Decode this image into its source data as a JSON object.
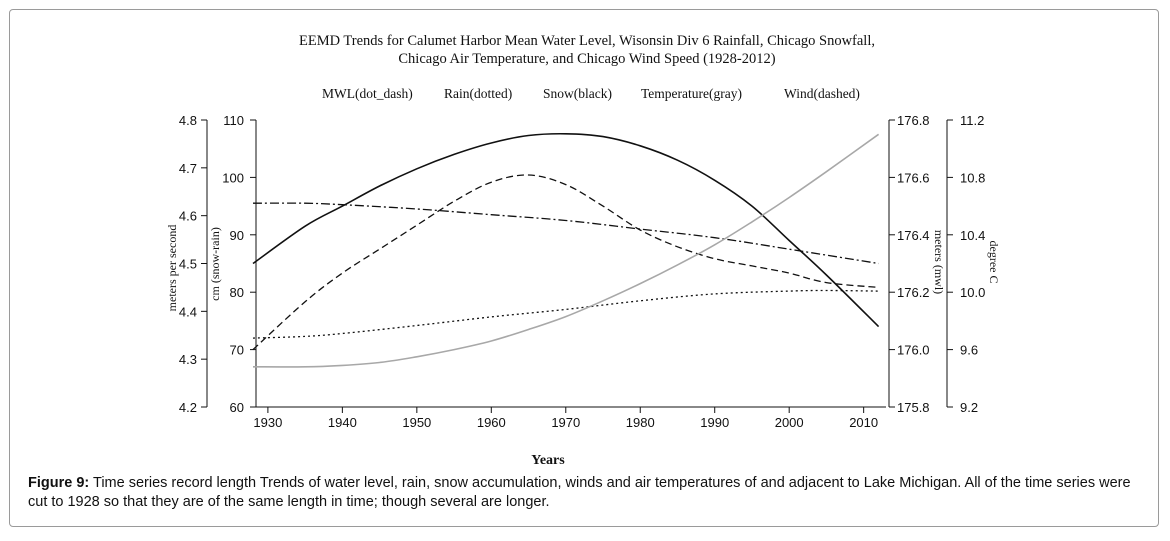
{
  "chart_data": {
    "type": "line",
    "title_line1": "EEMD Trends for Calumet Harbor Mean Water Level, Wisonsin Div 6 Rainfall, Chicago Snowfall,",
    "title_line2": "Chicago Air Temperature, and Chicago Wind Speed (1928-2012)",
    "legend_entries": [
      "MWL(dot_dash)",
      "Rain(dotted)",
      "Snow(black)",
      "Temperature(gray)",
      "Wind(dashed)"
    ],
    "legend_position": "top",
    "xlabel": "Years",
    "xlim": [
      1928,
      2013
    ],
    "x_ticks": [
      1930,
      1940,
      1950,
      1960,
      1970,
      1980,
      1990,
      2000,
      2010
    ],
    "axes": {
      "wind": {
        "label": "meters per second",
        "range": [
          4.2,
          4.8
        ],
        "ticks": [
          "4.2",
          "4.3",
          "4.4",
          "4.5",
          "4.6",
          "4.7",
          "4.8"
        ]
      },
      "snow_rain": {
        "label": "cm (snow-rain)",
        "range": [
          60,
          110
        ],
        "ticks": [
          "60",
          "70",
          "80",
          "90",
          "100",
          "110"
        ]
      },
      "mwl": {
        "label": "meters (mwl)",
        "range": [
          175.8,
          176.8
        ],
        "ticks": [
          "175.8",
          "176.0",
          "176.2",
          "176.4",
          "176.6",
          "176.8"
        ]
      },
      "temperature": {
        "label": "degree C",
        "range": [
          9.2,
          11.2
        ],
        "ticks": [
          "9.2",
          "9.6",
          "10.0",
          "10.4",
          "10.8",
          "11.2"
        ]
      }
    },
    "series": [
      {
        "name": "Snow(black)",
        "axis": "snow_rain",
        "style": "solid",
        "color": "#111111",
        "x": [
          1928,
          1935,
          1940,
          1945,
          1950,
          1955,
          1960,
          1965,
          1970,
          1975,
          1980,
          1985,
          1990,
          1995,
          2000,
          2005,
          2012
        ],
        "y": [
          85,
          91.5,
          95,
          98.5,
          101.5,
          104,
          106,
          107.3,
          107.6,
          107.1,
          105.5,
          103,
          99.5,
          95,
          89,
          83,
          74
        ]
      },
      {
        "name": "Wind(dashed)",
        "axis": "wind",
        "style": "dashed",
        "color": "#111111",
        "x": [
          1928,
          1935,
          1940,
          1945,
          1950,
          1955,
          1960,
          1965,
          1970,
          1975,
          1980,
          1985,
          1990,
          1995,
          2000,
          2005,
          2012
        ],
        "y": [
          4.32,
          4.42,
          4.48,
          4.53,
          4.58,
          4.63,
          4.67,
          4.685,
          4.665,
          4.62,
          4.57,
          4.535,
          4.51,
          4.495,
          4.48,
          4.46,
          4.45
        ]
      },
      {
        "name": "MWL(dot_dash)",
        "axis": "mwl",
        "style": "dot_dash",
        "color": "#111111",
        "x": [
          1928,
          1935,
          1940,
          1950,
          1960,
          1970,
          1980,
          1990,
          2000,
          2012
        ],
        "y": [
          176.51,
          176.51,
          176.505,
          176.49,
          176.47,
          176.45,
          176.42,
          176.39,
          176.35,
          176.3
        ]
      },
      {
        "name": "Rain(dotted)",
        "axis": "snow_rain",
        "style": "dotted",
        "color": "#111111",
        "x": [
          1928,
          1935,
          1940,
          1950,
          1960,
          1970,
          1980,
          1990,
          2000,
          2005,
          2012
        ],
        "y": [
          72,
          72.3,
          72.8,
          74.2,
          75.7,
          77,
          78.5,
          79.7,
          80.2,
          80.3,
          80.2
        ]
      },
      {
        "name": "Temperature(gray)",
        "axis": "temperature",
        "style": "solid",
        "color": "#a8a8a8",
        "x": [
          1928,
          1935,
          1940,
          1945,
          1950,
          1955,
          1960,
          1965,
          1970,
          1975,
          1980,
          1985,
          1990,
          1995,
          2000,
          2005,
          2012
        ],
        "y": [
          9.48,
          9.48,
          9.49,
          9.51,
          9.55,
          9.6,
          9.66,
          9.74,
          9.83,
          9.94,
          10.06,
          10.19,
          10.33,
          10.49,
          10.66,
          10.84,
          11.1
        ]
      }
    ]
  },
  "caption": {
    "label": "Figure 9:",
    "text": " Time series record length Trends of water level, rain, snow accumulation, winds and air temperatures of and adjacent to Lake Michigan. All of the time series were cut to 1928 so that they are of the same length in time; though several are longer."
  }
}
